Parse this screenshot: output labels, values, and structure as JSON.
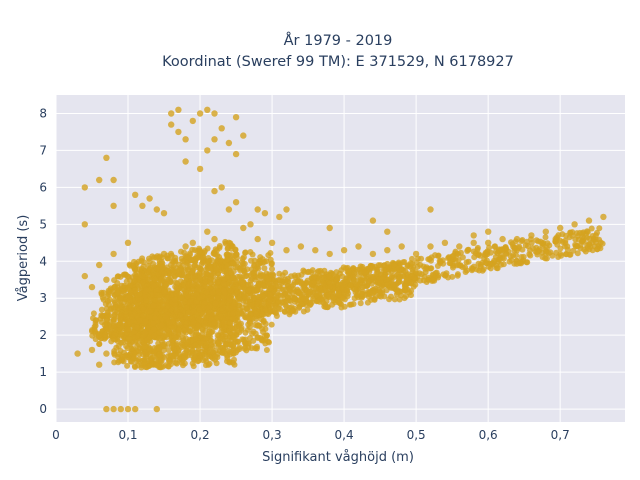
{
  "chart_data": {
    "type": "scatter",
    "title": [
      "År 1979 - 2019",
      "Koordinat (Sweref 99 TM): E 371529, N 6178927"
    ],
    "xlabel": "Signifikant våghöjd (m)",
    "ylabel": "Vågperiod (s)",
    "xlim": [
      0,
      0.79
    ],
    "ylim": [
      -0.35,
      8.5
    ],
    "xticks": [
      0,
      0.1,
      0.2,
      0.3,
      0.4,
      0.5,
      0.6,
      0.7
    ],
    "xtick_labels": [
      "0",
      "0,1",
      "0,2",
      "0,3",
      "0,4",
      "0,5",
      "0,6",
      "0,7"
    ],
    "yticks": [
      0,
      1,
      2,
      3,
      4,
      5,
      6,
      7,
      8
    ],
    "ytick_labels": [
      "0",
      "1",
      "2",
      "3",
      "4",
      "5",
      "6",
      "7",
      "8"
    ],
    "grid": true,
    "marker_color": "#d4a21f",
    "plot_background": "#e5e5ef",
    "series": [
      {
        "points": [
          [
            0.07,
            0
          ],
          [
            0.08,
            0
          ],
          [
            0.09,
            0
          ],
          [
            0.1,
            0
          ],
          [
            0.11,
            0
          ],
          [
            0.14,
            0
          ],
          [
            0.03,
            1.5
          ],
          [
            0.05,
            1.6
          ],
          [
            0.06,
            1.2
          ],
          [
            0.06,
            2.0
          ],
          [
            0.07,
            1.5
          ],
          [
            0.08,
            1.9
          ],
          [
            0.09,
            2.5
          ],
          [
            0.1,
            1.4
          ],
          [
            0.04,
            3.6
          ],
          [
            0.05,
            3.3
          ],
          [
            0.06,
            3.9
          ],
          [
            0.07,
            3.5
          ],
          [
            0.08,
            4.2
          ],
          [
            0.09,
            3.0
          ],
          [
            0.1,
            4.5
          ],
          [
            0.11,
            3.2
          ],
          [
            0.12,
            3.6
          ],
          [
            0.13,
            4.0
          ],
          [
            0.14,
            3.8
          ],
          [
            0.15,
            4.2
          ],
          [
            0.16,
            3.9
          ],
          [
            0.18,
            4.4
          ],
          [
            0.19,
            4.5
          ],
          [
            0.21,
            4.8
          ],
          [
            0.22,
            4.6
          ],
          [
            0.24,
            4.5
          ],
          [
            0.26,
            4.9
          ],
          [
            0.28,
            4.6
          ],
          [
            0.3,
            4.5
          ],
          [
            0.32,
            4.3
          ],
          [
            0.34,
            4.4
          ],
          [
            0.36,
            4.3
          ],
          [
            0.38,
            4.2
          ],
          [
            0.4,
            4.3
          ],
          [
            0.42,
            4.4
          ],
          [
            0.44,
            4.2
          ],
          [
            0.46,
            4.3
          ],
          [
            0.48,
            4.4
          ],
          [
            0.5,
            4.2
          ],
          [
            0.52,
            4.4
          ],
          [
            0.54,
            4.5
          ],
          [
            0.56,
            4.4
          ],
          [
            0.58,
            4.5
          ],
          [
            0.6,
            4.5
          ],
          [
            0.62,
            4.6
          ],
          [
            0.64,
            4.6
          ],
          [
            0.66,
            4.7
          ],
          [
            0.68,
            4.8
          ],
          [
            0.7,
            4.9
          ],
          [
            0.72,
            5.0
          ],
          [
            0.74,
            5.1
          ],
          [
            0.76,
            5.2
          ],
          [
            0.04,
            6.0
          ],
          [
            0.06,
            6.2
          ],
          [
            0.07,
            6.8
          ],
          [
            0.08,
            6.2
          ],
          [
            0.04,
            5.0
          ],
          [
            0.08,
            5.5
          ],
          [
            0.11,
            5.8
          ],
          [
            0.12,
            5.5
          ],
          [
            0.13,
            5.7
          ],
          [
            0.14,
            5.4
          ],
          [
            0.15,
            5.3
          ],
          [
            0.16,
            7.7
          ],
          [
            0.16,
            8.0
          ],
          [
            0.17,
            8.1
          ],
          [
            0.17,
            7.5
          ],
          [
            0.18,
            7.3
          ],
          [
            0.18,
            6.7
          ],
          [
            0.19,
            7.8
          ],
          [
            0.2,
            8.0
          ],
          [
            0.2,
            6.5
          ],
          [
            0.21,
            8.1
          ],
          [
            0.21,
            7.0
          ],
          [
            0.22,
            8.0
          ],
          [
            0.22,
            7.3
          ],
          [
            0.23,
            7.6
          ],
          [
            0.23,
            6.0
          ],
          [
            0.24,
            7.2
          ],
          [
            0.25,
            7.9
          ],
          [
            0.25,
            6.9
          ],
          [
            0.26,
            7.4
          ],
          [
            0.22,
            5.9
          ],
          [
            0.24,
            5.4
          ],
          [
            0.25,
            5.6
          ],
          [
            0.27,
            5.0
          ],
          [
            0.28,
            5.4
          ],
          [
            0.29,
            5.3
          ],
          [
            0.31,
            5.2
          ],
          [
            0.32,
            5.4
          ],
          [
            0.44,
            5.1
          ],
          [
            0.52,
            5.4
          ],
          [
            0.38,
            4.9
          ],
          [
            0.46,
            4.8
          ],
          [
            0.58,
            4.7
          ],
          [
            0.6,
            4.8
          ]
        ],
        "bands": [
          {
            "x": [
              0.05,
              0.76
            ],
            "y_low": [
              1.7,
              4.35
            ],
            "y_high": [
              2.6,
              4.95
            ]
          },
          {
            "x": [
              0.06,
              0.5
            ],
            "y_low": [
              1.9,
              3.0
            ],
            "y_high": [
              3.3,
              4.0
            ]
          },
          {
            "x": [
              0.08,
              0.3
            ],
            "y_low": [
              1.1,
              1.6
            ],
            "y_high": [
              3.6,
              4.4
            ]
          },
          {
            "x": [
              0.1,
              0.25
            ],
            "y_low": [
              1.1,
              1.2
            ],
            "y_high": [
              4.0,
              4.6
            ]
          }
        ]
      }
    ]
  }
}
